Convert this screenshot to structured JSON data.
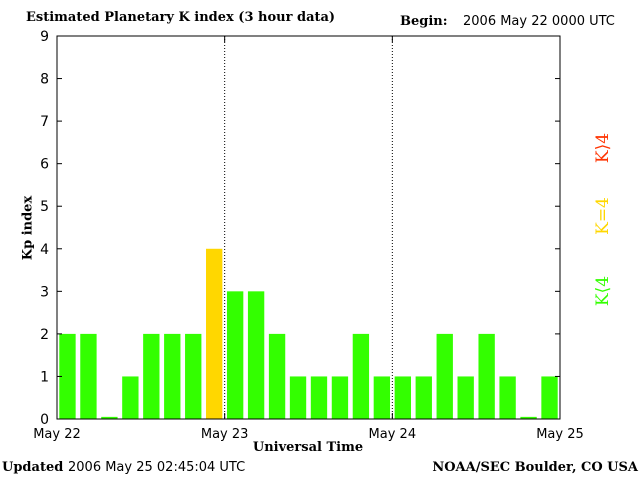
{
  "header": {
    "title": "Estimated Planetary K index (3 hour data)",
    "begin_label": "Begin:",
    "begin_value": "2006 May 22 0000 UTC"
  },
  "footer": {
    "updated_label": "Updated",
    "updated_value": "2006 May 25 02:45:04 UTC",
    "source": "NOAA/SEC Boulder, CO USA"
  },
  "legend": {
    "high": {
      "label": "K⟩4",
      "color": "#ff3300"
    },
    "equal": {
      "label": "K=4",
      "color": "#ffd700"
    },
    "low": {
      "label": "K⟨4",
      "color": "#33ff00"
    }
  },
  "chart_data": {
    "type": "bar",
    "title": "Estimated Planetary K index (3 hour data)",
    "xlabel": "Universal Time",
    "ylabel": "Kp index",
    "ylim": [
      0,
      9
    ],
    "yticks": [
      "0",
      "1",
      "2",
      "3",
      "4",
      "5",
      "6",
      "7",
      "8",
      "9"
    ],
    "xticks": [
      "May 22",
      "May 23",
      "May 24",
      "May 25"
    ],
    "grid": false,
    "day_separators": true,
    "values": [
      2,
      2,
      0.05,
      1,
      2,
      2,
      2,
      4,
      3,
      3,
      2,
      1,
      1,
      1,
      2,
      1,
      1,
      1,
      2,
      1,
      2,
      1,
      0.05,
      1
    ],
    "colors": {
      "low": "#33ff00",
      "equal": "#ffd700",
      "high": "#ff3300"
    }
  }
}
